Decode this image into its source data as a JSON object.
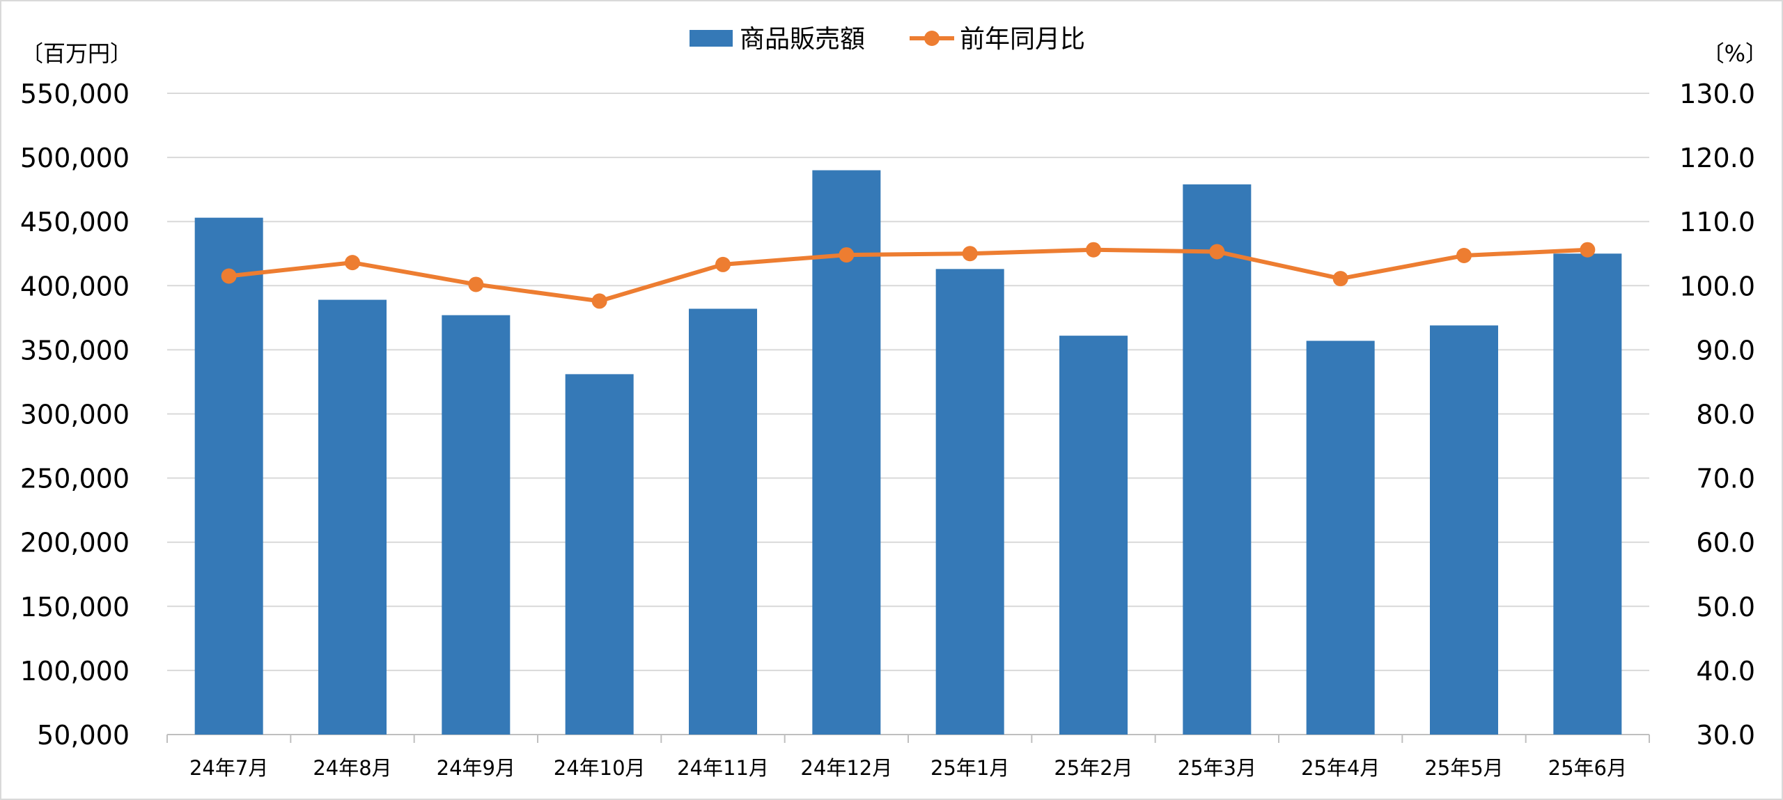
{
  "chart_data": {
    "type": "bar",
    "categories": [
      "24年7月",
      "24年8月",
      "24年9月",
      "24年10月",
      "24年11月",
      "24年12月",
      "25年1月",
      "25年2月",
      "25年3月",
      "25年4月",
      "25年5月",
      "25年6月"
    ],
    "series": [
      {
        "name": "商品販売額",
        "type": "bar",
        "axis": "left",
        "color": "#3579b7",
        "values": [
          453000,
          389000,
          377000,
          331000,
          382000,
          490000,
          413000,
          361000,
          479000,
          357000,
          369000,
          425000
        ]
      },
      {
        "name": "前年同月比",
        "type": "line",
        "axis": "right",
        "color": "#ed7d31",
        "values": [
          101.5,
          103.6,
          100.2,
          97.6,
          103.3,
          104.8,
          105.0,
          105.6,
          105.3,
          101.1,
          104.7,
          105.6
        ]
      }
    ],
    "y_left": {
      "unit_label": "〔百万円〕",
      "range": [
        50000,
        550000
      ],
      "ticks": [
        "550,000",
        "500,000",
        "450,000",
        "400,000",
        "350,000",
        "300,000",
        "250,000",
        "200,000",
        "150,000",
        "100,000",
        "50,000"
      ]
    },
    "y_right": {
      "unit_label": "〔%〕",
      "range": [
        30,
        130
      ],
      "ticks": [
        "130.0",
        "120.0",
        "110.0",
        "100.0",
        "90.0",
        "80.0",
        "70.0",
        "60.0",
        "50.0",
        "40.0",
        "30.0"
      ]
    },
    "grid": true,
    "legend_position": "top-center"
  }
}
